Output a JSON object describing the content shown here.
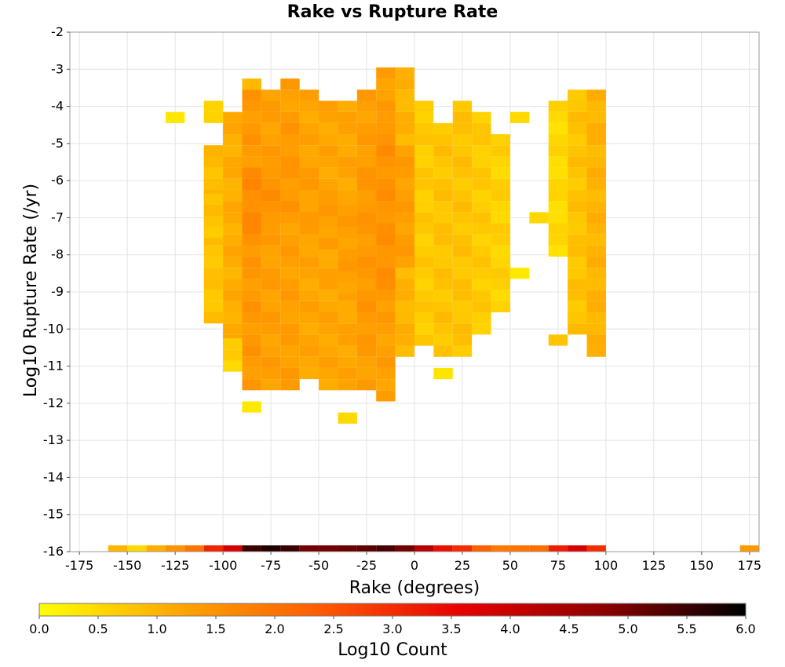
{
  "chart_data": {
    "type": "heatmap",
    "title": "Rake vs Rupture Rate",
    "xlabel": "Rake (degrees)",
    "ylabel": "Log10 Rupture Rate (/yr)",
    "xlim": [
      -180,
      180
    ],
    "ylim": [
      -16,
      -2
    ],
    "x_ticks": [
      "-175",
      "-150",
      "-125",
      "-100",
      "-75",
      "-50",
      "-25",
      "0",
      "25",
      "50",
      "75",
      "100",
      "125",
      "150",
      "175"
    ],
    "y_ticks": [
      "-2",
      "-3",
      "-4",
      "-5",
      "-6",
      "-7",
      "-8",
      "-9",
      "-10",
      "-11",
      "-12",
      "-13",
      "-14",
      "-15",
      "-16"
    ],
    "grid": true,
    "bin_width_x": 10,
    "bin_height_y": 0.3,
    "colorbar": {
      "label": "Log10 Count",
      "range": [
        0.0,
        6.0
      ],
      "ticks": [
        "0.0",
        "0.5",
        "1.0",
        "1.5",
        "2.0",
        "2.5",
        "3.0",
        "3.5",
        "4.0",
        "4.5",
        "5.0",
        "5.5",
        "6.0"
      ],
      "colors": [
        "#ffff00",
        "#ffa500",
        "#ff5a00",
        "#e60000",
        "#8c0000",
        "#000000"
      ]
    },
    "bins": [
      {
        "x": -170,
        "rows": []
      },
      {
        "x": -160,
        "rows": []
      },
      {
        "x": -150,
        "rows": []
      },
      {
        "x": -140,
        "rows": []
      },
      {
        "x": -130,
        "rows": [
          [
            -4.3,
            -4.3,
            0.3
          ]
        ]
      },
      {
        "x": -120,
        "rows": []
      },
      {
        "x": -110,
        "rows": [
          [
            -4.0,
            -4.3,
            0.5
          ],
          [
            -5.2,
            -9.7,
            0.8
          ],
          [
            -5.2,
            -6.4,
            0.9
          ],
          [
            -6.5,
            -7.6,
            0.8
          ]
        ]
      },
      {
        "x": -100,
        "rows": [
          [
            -4.3,
            -10.3,
            1.1
          ],
          [
            -10.4,
            -11.2,
            0.6
          ]
        ]
      },
      {
        "x": -90,
        "rows": [
          [
            -3.4,
            -3.7,
            1.0
          ],
          [
            -3.7,
            -11.5,
            1.4
          ],
          [
            -5.8,
            -7.6,
            1.6
          ],
          [
            -12.1,
            -12.1,
            0.4
          ]
        ]
      },
      {
        "x": -80,
        "rows": [
          [
            -3.7,
            -11.5,
            1.3
          ],
          [
            -5.8,
            -7.2,
            1.5
          ]
        ]
      },
      {
        "x": -70,
        "rows": [
          [
            -3.4,
            -11.5,
            1.3
          ],
          [
            -4.6,
            -6.9,
            1.4
          ]
        ]
      },
      {
        "x": -60,
        "rows": [
          [
            -3.7,
            -11.2,
            1.2
          ],
          [
            -5.5,
            -7.6,
            1.3
          ]
        ]
      },
      {
        "x": -50,
        "rows": [
          [
            -4.0,
            -11.5,
            1.2
          ],
          [
            -6.5,
            -7.9,
            1.3
          ]
        ]
      },
      {
        "x": -40,
        "rows": [
          [
            -4.0,
            -11.5,
            1.2
          ],
          [
            -6.5,
            -9.1,
            1.3
          ],
          [
            -12.4,
            -12.4,
            0.4
          ]
        ]
      },
      {
        "x": -30,
        "rows": [
          [
            -3.7,
            -11.5,
            1.3
          ],
          [
            -5.5,
            -10.3,
            1.4
          ]
        ]
      },
      {
        "x": -20,
        "rows": [
          [
            -3.1,
            -11.8,
            1.3
          ],
          [
            -4.6,
            -9.1,
            1.5
          ]
        ]
      },
      {
        "x": -10,
        "rows": [
          [
            -3.1,
            -10.6,
            1.0
          ],
          [
            -5.2,
            -8.2,
            1.3
          ]
        ]
      },
      {
        "x": 0,
        "rows": [
          [
            -4.0,
            -10.3,
            0.7
          ]
        ]
      },
      {
        "x": 10,
        "rows": [
          [
            -4.6,
            -10.6,
            0.8
          ],
          [
            -11.2,
            -11.2,
            0.4
          ]
        ]
      },
      {
        "x": 20,
        "rows": [
          [
            -4.0,
            -10.6,
            0.8
          ]
        ]
      },
      {
        "x": 30,
        "rows": [
          [
            -4.3,
            -10.0,
            0.7
          ]
        ]
      },
      {
        "x": 40,
        "rows": [
          [
            -4.9,
            -9.4,
            0.6
          ]
        ]
      },
      {
        "x": 50,
        "rows": [
          [
            -4.3,
            -4.3,
            0.4
          ],
          [
            -8.5,
            -8.5,
            0.4
          ]
        ]
      },
      {
        "x": 60,
        "rows": [
          [
            -7.0,
            -7.0,
            0.4
          ]
        ]
      },
      {
        "x": 70,
        "rows": [
          [
            -4.0,
            -7.9,
            0.5
          ],
          [
            -10.3,
            -10.3,
            0.9
          ]
        ]
      },
      {
        "x": 80,
        "rows": [
          [
            -3.7,
            -10.0,
            0.8
          ]
        ]
      },
      {
        "x": 90,
        "rows": [
          [
            -3.7,
            -10.6,
            1.0
          ]
        ]
      }
    ],
    "bottom_row": {
      "y": -16,
      "cells": [
        {
          "x": -155,
          "value": 1.0
        },
        {
          "x": -145,
          "value": 0.5
        },
        {
          "x": -135,
          "value": 1.1
        },
        {
          "x": -125,
          "value": 1.5
        },
        {
          "x": -115,
          "value": 2.0
        },
        {
          "x": -105,
          "value": 3.1
        },
        {
          "x": -95,
          "value": 3.8
        },
        {
          "x": -85,
          "value": 5.5
        },
        {
          "x": -75,
          "value": 5.7
        },
        {
          "x": -65,
          "value": 5.5
        },
        {
          "x": -55,
          "value": 5.0
        },
        {
          "x": -45,
          "value": 5.0
        },
        {
          "x": -35,
          "value": 5.1
        },
        {
          "x": -25,
          "value": 5.2
        },
        {
          "x": -15,
          "value": 5.4
        },
        {
          "x": -5,
          "value": 5.0
        },
        {
          "x": 5,
          "value": 4.2
        },
        {
          "x": 15,
          "value": 3.4
        },
        {
          "x": 25,
          "value": 3.0
        },
        {
          "x": 35,
          "value": 2.3
        },
        {
          "x": 45,
          "value": 1.9
        },
        {
          "x": 55,
          "value": 2.0
        },
        {
          "x": 65,
          "value": 2.1
        },
        {
          "x": 75,
          "value": 3.2
        },
        {
          "x": 85,
          "value": 3.8
        },
        {
          "x": 95,
          "value": 3.0
        },
        {
          "x": 175,
          "value": 1.4
        }
      ]
    }
  }
}
